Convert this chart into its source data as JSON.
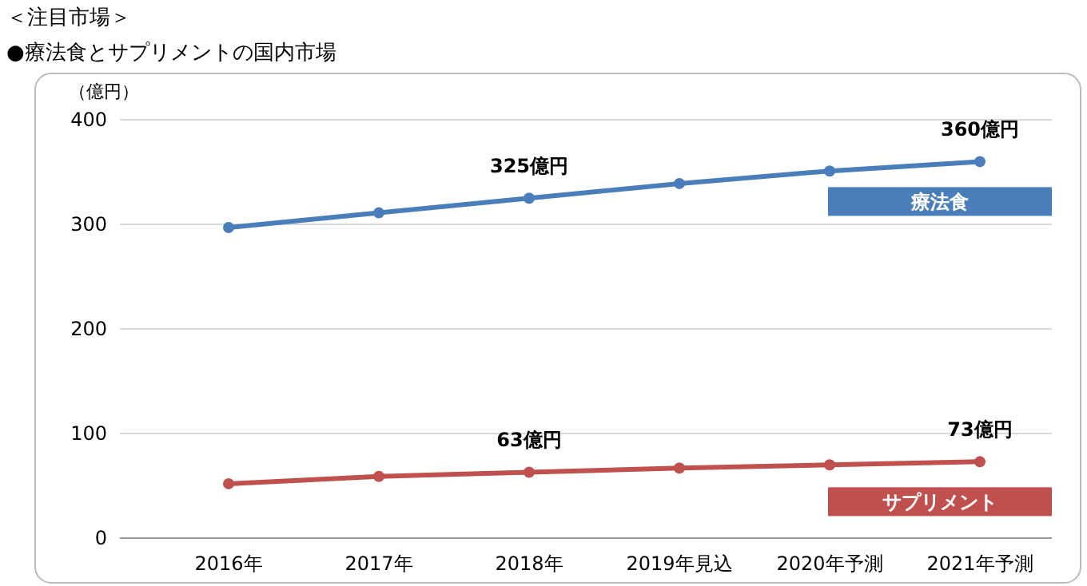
{
  "chart_data": {
    "type": "line",
    "title": "＜注目市場＞",
    "subtitle": "●療法食とサプリメントの国内市場",
    "ylabel": "（億円）",
    "categories": [
      "2016年",
      "2017年",
      "2018年",
      "2019年見込",
      "2020年予測",
      "2021年予測"
    ],
    "series": [
      {
        "name": "療法食",
        "color": "#4a7ebb",
        "values": [
          297,
          311,
          325,
          339,
          351,
          360
        ],
        "value_labels": [
          null,
          null,
          "325億円",
          null,
          null,
          "360億円"
        ]
      },
      {
        "name": "サプリメント",
        "color": "#c0504d",
        "values": [
          52,
          59,
          63,
          67,
          70,
          73
        ],
        "value_labels": [
          null,
          null,
          "63億円",
          null,
          null,
          "73億円"
        ]
      }
    ],
    "ylim": [
      0,
      400
    ],
    "yticks": [
      0,
      100,
      200,
      300,
      400
    ],
    "grid": "y",
    "marker": "circle",
    "line_style": "solid",
    "legend": "right"
  }
}
